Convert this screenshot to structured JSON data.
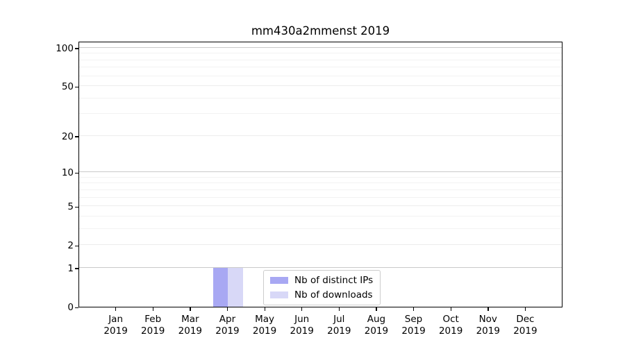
{
  "title": "mm430a2mmenst 2019",
  "chart_data": {
    "type": "bar",
    "title": "mm430a2mmenst 2019",
    "categories": [
      "Jan",
      "Feb",
      "Mar",
      "Apr",
      "May",
      "Jun",
      "Jul",
      "Aug",
      "Sep",
      "Oct",
      "Nov",
      "Dec"
    ],
    "category_sublabel": "2019",
    "series": [
      {
        "name": "Nb of distinct IPs",
        "color": "#a8a8f3",
        "values": [
          0,
          0,
          0,
          1,
          0,
          0,
          0,
          0,
          0,
          0,
          0,
          0
        ]
      },
      {
        "name": "Nb of downloads",
        "color": "#d8d8f7",
        "values": [
          0,
          0,
          0,
          1,
          0,
          0,
          0,
          0,
          0,
          0,
          0,
          0
        ]
      }
    ],
    "yscale": "log1p",
    "ylim": [
      0,
      113
    ],
    "yticks": [
      0,
      1,
      2,
      5,
      10,
      20,
      50,
      100
    ],
    "yticks_minor": [
      3,
      4,
      6,
      7,
      8,
      9,
      30,
      40,
      60,
      70,
      80,
      90
    ],
    "yticks_decade": [
      1,
      10,
      100
    ],
    "grid": "horizontal",
    "legend": {
      "position": "lower-center"
    }
  },
  "colors": {
    "axis": "#000000",
    "grid_decade": "#c9c9c9",
    "grid_major": "#ececec",
    "grid_minor": "#f2f2f2",
    "legend_border": "#cccccc",
    "background": "#ffffff"
  }
}
